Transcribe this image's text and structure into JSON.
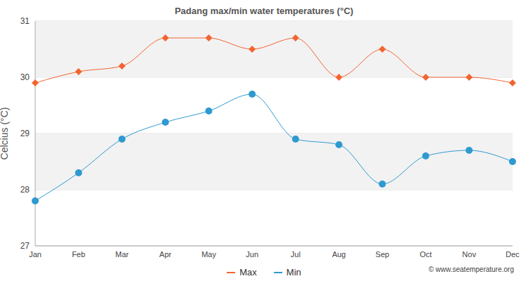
{
  "chart_data": {
    "type": "line",
    "title": "Padang max/min water temperatures (°C)",
    "y_label": "Celcius (°C)",
    "categories": [
      "Jan",
      "Feb",
      "Mar",
      "Apr",
      "May",
      "Jun",
      "Jul",
      "Aug",
      "Sep",
      "Oct",
      "Nov",
      "Dec"
    ],
    "series": [
      {
        "name": "Max",
        "color": "#f26430",
        "marker": "diamond",
        "values": [
          29.9,
          30.1,
          30.2,
          30.7,
          30.7,
          30.5,
          30.7,
          30.0,
          30.5,
          30.0,
          30.0,
          29.9
        ]
      },
      {
        "name": "Min",
        "color": "#2e9ad0",
        "marker": "circle",
        "values": [
          27.8,
          28.3,
          28.9,
          29.2,
          29.4,
          29.7,
          28.9,
          28.8,
          28.1,
          28.6,
          28.7,
          28.5
        ]
      }
    ],
    "ylim": [
      27,
      31
    ],
    "yticks": [
      27,
      28,
      29,
      30,
      31
    ],
    "grid": true,
    "legend": "bottom",
    "annotations": [
      "© www.seatemperature.org"
    ]
  }
}
